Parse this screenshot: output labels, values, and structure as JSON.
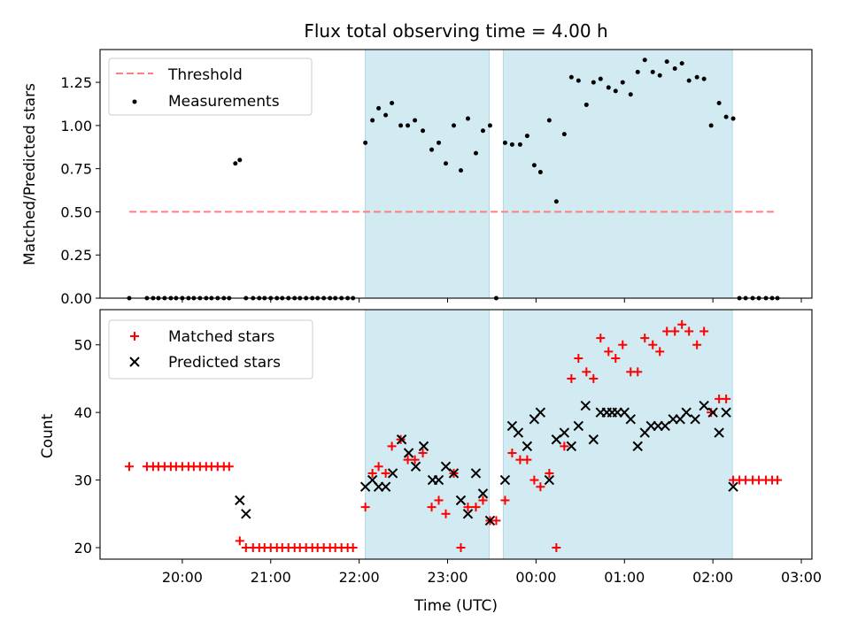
{
  "figure_title": "Flux total observing time = 4.00 h",
  "colors": {
    "threshold": "#ff7f7f",
    "measurement": "#000000",
    "matched": "#ff0000",
    "predicted": "#000000",
    "band": "#add8e6"
  },
  "chart_data": [
    {
      "type": "scatter",
      "title": "Flux total observing time = 4.00 h",
      "xlabel": "",
      "ylabel": "Matched/Predicted stars",
      "x_unit": "hours after 19:00 UTC (clock time; values above 24 are after midnight)",
      "xlim": [
        19.07,
        27.12
      ],
      "ylim": [
        0,
        1.44
      ],
      "yticks": [
        "0.00",
        "0.25",
        "0.50",
        "0.75",
        "1.00",
        "1.25"
      ],
      "grid": false,
      "legend_position": "upper-left",
      "legend": [
        {
          "label": "Threshold",
          "kind": "dashed-line",
          "color": "#ff7f7f"
        },
        {
          "label": "Measurements",
          "kind": "dot",
          "color": "#000000"
        }
      ],
      "shaded_intervals": [
        [
          22.07,
          23.47
        ],
        [
          23.63,
          26.22
        ]
      ],
      "threshold": {
        "name": "Threshold",
        "y": 0.5,
        "x_range": [
          19.4,
          26.73
        ]
      },
      "series": [
        {
          "name": "Measurements",
          "x": [
            19.4,
            19.6,
            19.67,
            19.73,
            19.8,
            19.87,
            19.93,
            20.0,
            20.07,
            20.13,
            20.2,
            20.27,
            20.33,
            20.4,
            20.47,
            20.53,
            20.6,
            20.65,
            20.72,
            20.8,
            20.87,
            20.93,
            21.0,
            21.07,
            21.13,
            21.2,
            21.27,
            21.33,
            21.4,
            21.47,
            21.53,
            21.6,
            21.67,
            21.73,
            21.8,
            21.87,
            21.93,
            22.07,
            22.15,
            22.22,
            22.3,
            22.37,
            22.47,
            22.55,
            22.63,
            22.72,
            22.82,
            22.9,
            22.98,
            23.07,
            23.15,
            23.23,
            23.32,
            23.4,
            23.48,
            23.55,
            23.65,
            23.73,
            23.82,
            23.9,
            23.98,
            24.05,
            24.15,
            24.23,
            24.32,
            24.4,
            24.48,
            24.57,
            24.65,
            24.73,
            24.82,
            24.9,
            24.98,
            25.07,
            25.15,
            25.23,
            25.32,
            25.4,
            25.48,
            25.57,
            25.65,
            25.73,
            25.82,
            25.9,
            25.98,
            26.07,
            26.15,
            26.23,
            26.3,
            26.37,
            26.45,
            26.52,
            26.6,
            26.67,
            26.73
          ],
          "y": [
            0,
            0,
            0,
            0,
            0,
            0,
            0,
            0,
            0,
            0,
            0,
            0,
            0,
            0,
            0,
            0,
            0.78,
            0.8,
            0,
            0,
            0,
            0,
            0,
            0,
            0,
            0,
            0,
            0,
            0,
            0,
            0,
            0,
            0,
            0,
            0,
            0,
            0,
            0.9,
            1.03,
            1.1,
            1.06,
            1.13,
            1.0,
            1.0,
            1.03,
            0.97,
            0.86,
            0.9,
            0.78,
            1.0,
            0.74,
            1.04,
            0.84,
            0.97,
            1.0,
            0,
            0.9,
            0.89,
            0.89,
            0.94,
            0.77,
            0.73,
            1.03,
            0.56,
            0.95,
            1.28,
            1.26,
            1.12,
            1.25,
            1.27,
            1.22,
            1.2,
            1.25,
            1.18,
            1.31,
            1.38,
            1.31,
            1.29,
            1.37,
            1.33,
            1.36,
            1.26,
            1.28,
            1.27,
            1.0,
            1.13,
            1.05,
            1.04,
            0,
            0,
            0,
            0,
            0,
            0,
            0
          ]
        }
      ]
    },
    {
      "type": "scatter",
      "title": "",
      "xlabel": "Time (UTC)",
      "ylabel": "Count",
      "x_unit": "hours after 19:00 UTC (clock time; values above 24 are after midnight)",
      "xlim": [
        19.07,
        27.12
      ],
      "ylim": [
        18.3,
        55.2
      ],
      "xticks": [
        {
          "x": 20,
          "label": "20:00"
        },
        {
          "x": 21,
          "label": "21:00"
        },
        {
          "x": 22,
          "label": "22:00"
        },
        {
          "x": 23,
          "label": "23:00"
        },
        {
          "x": 24,
          "label": "00:00"
        },
        {
          "x": 25,
          "label": "01:00"
        },
        {
          "x": 26,
          "label": "02:00"
        },
        {
          "x": 27,
          "label": "03:00"
        }
      ],
      "yticks": [
        "20",
        "30",
        "40",
        "50"
      ],
      "grid": false,
      "legend_position": "upper-left",
      "legend": [
        {
          "label": "Matched stars",
          "kind": "plus",
          "color": "#ff0000"
        },
        {
          "label": "Predicted stars",
          "kind": "cross",
          "color": "#000000"
        }
      ],
      "shaded_intervals": [
        [
          22.07,
          23.47
        ],
        [
          23.63,
          26.22
        ]
      ],
      "series": [
        {
          "name": "Matched stars",
          "marker": "plus",
          "x": [
            19.4,
            19.6,
            19.67,
            19.73,
            19.8,
            19.87,
            19.93,
            20.0,
            20.07,
            20.13,
            20.2,
            20.27,
            20.33,
            20.4,
            20.47,
            20.53,
            20.65,
            20.72,
            20.8,
            20.87,
            20.93,
            21.0,
            21.07,
            21.13,
            21.2,
            21.27,
            21.33,
            21.4,
            21.47,
            21.53,
            21.6,
            21.67,
            21.73,
            21.8,
            21.87,
            21.93,
            22.07,
            22.15,
            22.22,
            22.3,
            22.37,
            22.47,
            22.55,
            22.63,
            22.72,
            22.82,
            22.9,
            22.98,
            23.07,
            23.15,
            23.23,
            23.32,
            23.4,
            23.48,
            23.55,
            23.65,
            23.73,
            23.82,
            23.9,
            23.98,
            24.05,
            24.15,
            24.23,
            24.32,
            24.4,
            24.48,
            24.57,
            24.65,
            24.73,
            24.82,
            24.9,
            24.98,
            25.07,
            25.15,
            25.23,
            25.32,
            25.4,
            25.48,
            25.57,
            25.65,
            25.73,
            25.82,
            25.9,
            25.98,
            26.07,
            26.15,
            26.23,
            26.3,
            26.37,
            26.45,
            26.52,
            26.6,
            26.67,
            26.73
          ],
          "y": [
            32,
            32,
            32,
            32,
            32,
            32,
            32,
            32,
            32,
            32,
            32,
            32,
            32,
            32,
            32,
            32,
            21,
            20,
            20,
            20,
            20,
            20,
            20,
            20,
            20,
            20,
            20,
            20,
            20,
            20,
            20,
            20,
            20,
            20,
            20,
            20,
            26,
            31,
            32,
            31,
            35,
            36,
            33,
            33,
            34,
            26,
            27,
            25,
            31,
            20,
            26,
            26,
            27,
            24,
            24,
            27,
            34,
            33,
            33,
            30,
            29,
            31,
            20,
            35,
            45,
            48,
            46,
            45,
            51,
            49,
            48,
            50,
            46,
            46,
            51,
            50,
            49,
            52,
            52,
            53,
            52,
            50,
            52,
            40,
            42,
            42,
            30,
            30,
            30,
            30,
            30,
            30,
            30,
            30
          ]
        },
        {
          "name": "Predicted stars",
          "marker": "cross",
          "x": [
            20.65,
            20.72,
            22.07,
            22.15,
            22.22,
            22.3,
            22.38,
            22.48,
            22.56,
            22.64,
            22.73,
            22.83,
            22.9,
            22.98,
            23.07,
            23.15,
            23.23,
            23.32,
            23.4,
            23.48,
            23.65,
            23.73,
            23.8,
            23.9,
            23.98,
            24.05,
            24.15,
            24.23,
            24.32,
            24.4,
            24.48,
            24.56,
            24.65,
            24.73,
            24.8,
            24.86,
            24.92,
            25.0,
            25.07,
            25.15,
            25.23,
            25.3,
            25.38,
            25.46,
            25.55,
            25.63,
            25.7,
            25.8,
            25.9,
            26.0,
            26.07,
            26.15,
            26.23
          ],
          "y": [
            27,
            25,
            29,
            30,
            29,
            29,
            31,
            36,
            34,
            32,
            35,
            30,
            30,
            32,
            31,
            27,
            25,
            31,
            28,
            24,
            30,
            38,
            37,
            35,
            39,
            40,
            30,
            36,
            37,
            35,
            38,
            41,
            36,
            40,
            40,
            40,
            40,
            40,
            39,
            35,
            37,
            38,
            38,
            38,
            39,
            39,
            40,
            39,
            41,
            40,
            37,
            40,
            29
          ]
        }
      ]
    }
  ]
}
